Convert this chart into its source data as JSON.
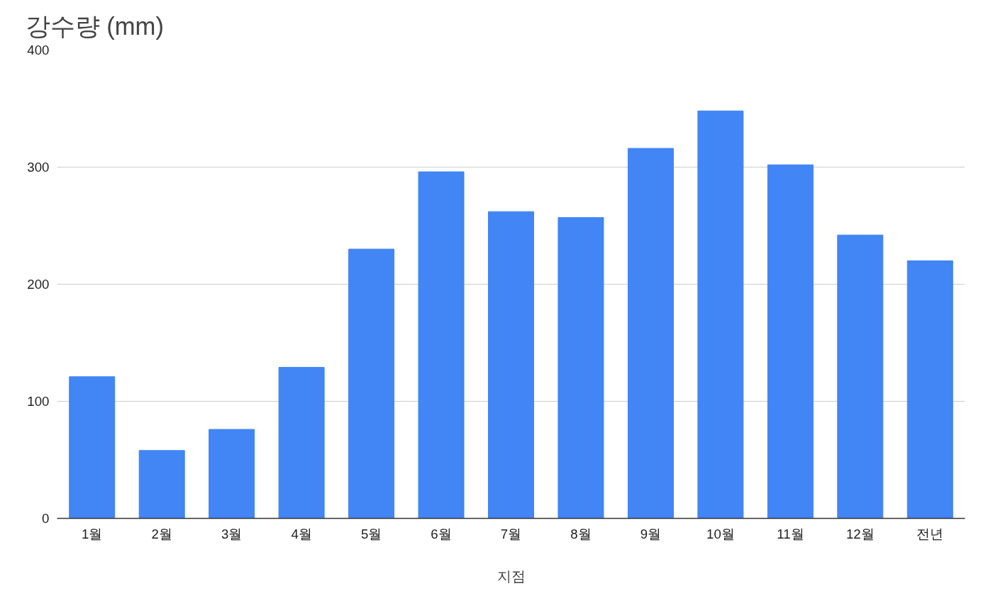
{
  "chart_data": {
    "type": "bar",
    "title": "강수량 (mm)",
    "xlabel": "지점",
    "categories": [
      "1월",
      "2월",
      "3월",
      "4월",
      "5월",
      "6월",
      "7월",
      "8월",
      "9월",
      "10월",
      "11월",
      "12월",
      "전년"
    ],
    "values": [
      121,
      58,
      76,
      129,
      230,
      296,
      262,
      257,
      316,
      348,
      302,
      242,
      220
    ],
    "color": "#4285f4",
    "ylim": [
      0,
      400
    ],
    "yticks": [
      0,
      100,
      200,
      300,
      400
    ],
    "grid": "y"
  }
}
